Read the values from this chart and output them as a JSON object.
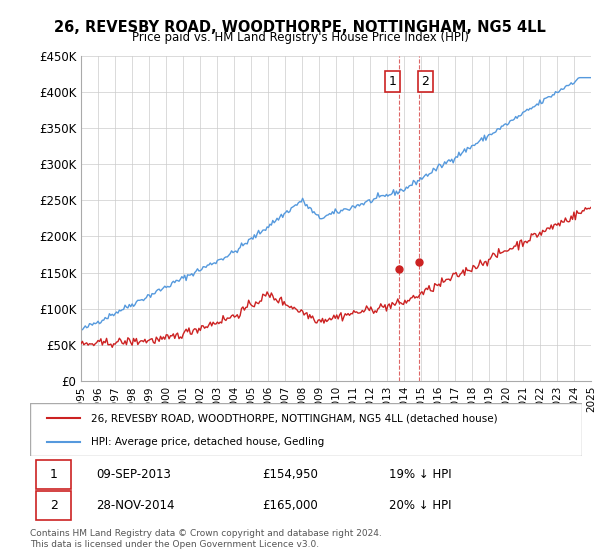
{
  "title": "26, REVESBY ROAD, WOODTHORPE, NOTTINGHAM, NG5 4LL",
  "subtitle": "Price paid vs. HM Land Registry's House Price Index (HPI)",
  "ylim": [
    0,
    450000
  ],
  "yticks": [
    0,
    50000,
    100000,
    150000,
    200000,
    250000,
    300000,
    350000,
    400000,
    450000
  ],
  "hpi_color": "#5599dd",
  "price_color": "#cc2222",
  "dashed_color": "#dd6666",
  "transaction1": {
    "date_label": "09-SEP-2013",
    "price": 154950,
    "pct": "19% ↓ HPI",
    "x": 2013.69
  },
  "transaction2": {
    "date_label": "28-NOV-2014",
    "price": 165000,
    "pct": "20% ↓ HPI",
    "x": 2014.91
  },
  "legend_label_red": "26, REVESBY ROAD, WOODTHORPE, NOTTINGHAM, NG5 4LL (detached house)",
  "legend_label_blue": "HPI: Average price, detached house, Gedling",
  "footnote": "Contains HM Land Registry data © Crown copyright and database right 2024.\nThis data is licensed under the Open Government Licence v3.0.",
  "xmin": 1995,
  "xmax": 2025
}
